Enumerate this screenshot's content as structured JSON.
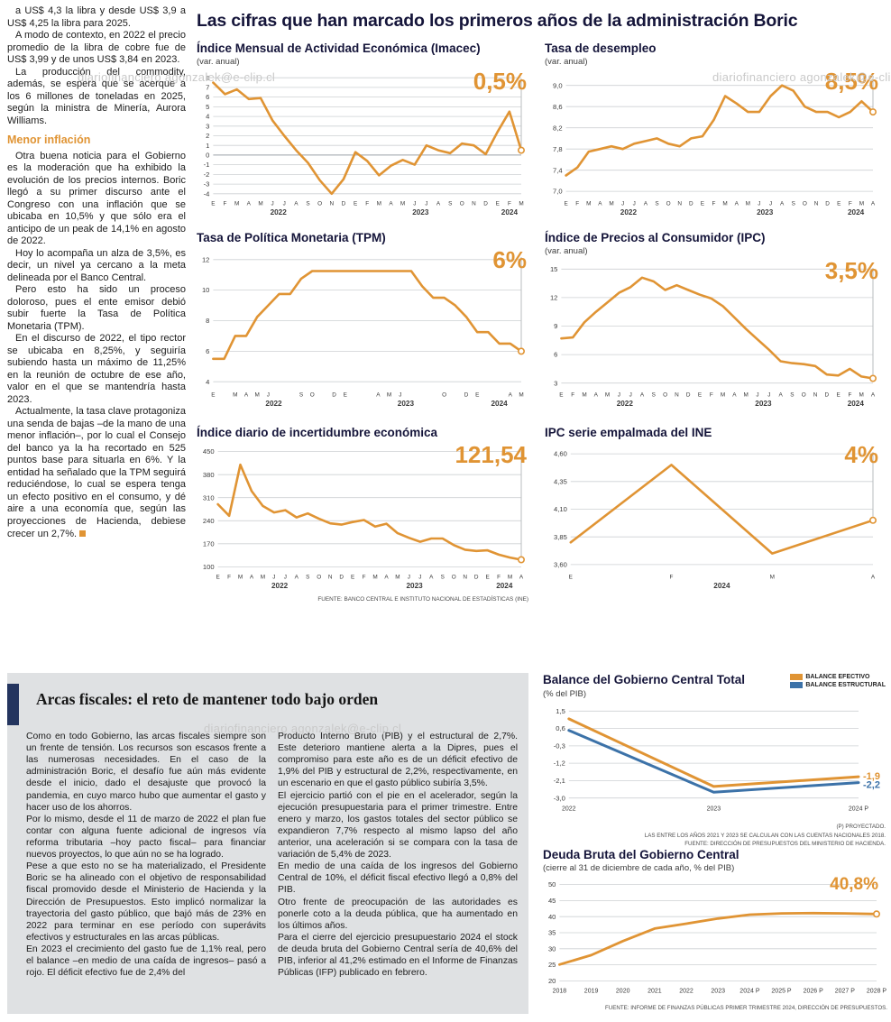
{
  "watermark": "diariofinanciero agonzalek@e-clip.cl",
  "colors": {
    "orange": "#E09434",
    "blue": "#3C72A8",
    "title_dark": "#15153A",
    "gray_bg": "#DFE1E3",
    "accent_bar": "#24355F"
  },
  "left_column": {
    "top_paragraphs": [
      "a US$ 4,3 la libra y desde US$ 3,9 a US$ 4,25 la libra para 2025.",
      "A modo de contexto, en 2022 el precio promedio de la libra de cobre fue de US$ 3,99 y de unos US$ 3,84 en 2023.",
      "La producción del commodity, además, se espera que se acerque a los 6 millones de toneladas en 2025, según la ministra de Minería, Aurora Williams."
    ],
    "section_heading": "Menor inflación",
    "bottom_paragraphs": [
      "Otra buena noticia para el Gobierno es la moderación que ha exhibido la evolución de los precios internos. Boric llegó a su primer discurso ante el Congreso con una inflación que se ubicaba en 10,5% y que sólo era el anticipo de un peak de 14,1% en agosto de 2022.",
      "Hoy lo acompaña un alza de 3,5%, es decir, un nivel ya cercano a la meta delineada por el Banco Central.",
      "Pero esto ha sido un proceso doloroso, pues el ente emisor debió subir fuerte la Tasa de Política Monetaria (TPM).",
      "En el discurso de 2022, el tipo rector se ubicaba en 8,25%, y seguiría subiendo hasta un máximo de 11,25% en la reunión de octubre de ese año, valor en el que se mantendría hasta 2023.",
      "Actualmente, la tasa clave protagoniza una senda de bajas –de la mano de una menor inflación–, por lo cual el Consejo del banco ya la ha recortado en 525 puntos base para situarla en 6%. Y la entidad ha señalado que la TPM seguirá reduciéndose, lo cual se espera tenga un efecto positivo en el consumo, y dé aire a una economía que, según las proyecciones de Hacienda, debiese crecer un 2,7%."
    ]
  },
  "main_title": "Las cifras que han marcado los primeros años de la administración Boric",
  "charts_source": "FUENTE: BANCO CENTRAL E INSTITUTO NACIONAL DE ESTADÍSTICAS (INE)",
  "chart_data": [
    {
      "id": "imacec",
      "type": "line",
      "title": "Índice Mensual de Actividad Económica (Imacec)",
      "subtitle": "(var. anual)",
      "end_label": "0,5%",
      "ylim": [
        -4.3,
        8.3
      ],
      "yticks": [
        8,
        7,
        6,
        5,
        4,
        3,
        2,
        1,
        0,
        -1,
        -2,
        -3,
        -4
      ],
      "ytick_labels": [
        "8",
        "7",
        "6",
        "5",
        "4",
        "3",
        "2",
        "1",
        "0",
        "-1",
        "-2",
        "-3",
        "-4"
      ],
      "x_labels": [
        "E",
        "F",
        "M",
        "A",
        "M",
        "J",
        "J",
        "A",
        "S",
        "O",
        "N",
        "D",
        "E",
        "F",
        "M",
        "A",
        "M",
        "J",
        "J",
        "A",
        "S",
        "O",
        "N",
        "D",
        "E",
        "F",
        "M"
      ],
      "year_groups": [
        {
          "label": "2022",
          "from": 0,
          "to": 11
        },
        {
          "label": "2023",
          "from": 12,
          "to": 23
        },
        {
          "label": "2024",
          "from": 24,
          "to": 26
        }
      ],
      "end_guide": true,
      "series": [
        {
          "name": "Imacec",
          "color": "orange",
          "width": 2.6,
          "end_marker": true,
          "values": [
            7.5,
            6.3,
            6.8,
            5.8,
            5.9,
            3.6,
            2.0,
            0.5,
            -0.8,
            -2.6,
            -4.0,
            -2.5,
            0.3,
            -0.6,
            -2.1,
            -1.1,
            -0.5,
            -1.0,
            1.0,
            0.5,
            0.2,
            1.2,
            1.0,
            0.1,
            2.4,
            4.5,
            0.5
          ]
        }
      ]
    },
    {
      "id": "desempleo",
      "type": "line",
      "title": "Tasa de desempleo",
      "subtitle": "(var. anual)",
      "end_label": "8,5%",
      "ylim": [
        6.9,
        9.2
      ],
      "yticks": [
        9.0,
        8.6,
        8.2,
        7.8,
        7.4,
        7.0
      ],
      "ytick_labels": [
        "9,0",
        "8,6",
        "8,2",
        "7,8",
        "7,4",
        "7,0"
      ],
      "x_labels": [
        "E",
        "F",
        "M",
        "A",
        "M",
        "J",
        "J",
        "A",
        "S",
        "O",
        "N",
        "D",
        "E",
        "F",
        "M",
        "A",
        "M",
        "J",
        "J",
        "A",
        "S",
        "O",
        "N",
        "D",
        "E",
        "F",
        "M",
        "A"
      ],
      "year_groups": [
        {
          "label": "2022",
          "from": 0,
          "to": 11
        },
        {
          "label": "2023",
          "from": 12,
          "to": 23
        },
        {
          "label": "2024",
          "from": 24,
          "to": 27
        }
      ],
      "end_guide": true,
      "series": [
        {
          "name": "Tasa de desempleo",
          "color": "orange",
          "width": 2.6,
          "end_marker": true,
          "values": [
            7.3,
            7.45,
            7.75,
            7.8,
            7.85,
            7.8,
            7.9,
            7.95,
            8.0,
            7.9,
            7.85,
            8.0,
            8.04,
            8.35,
            8.8,
            8.66,
            8.5,
            8.5,
            8.8,
            9.0,
            8.9,
            8.6,
            8.5,
            8.5,
            8.4,
            8.5,
            8.7,
            8.5
          ]
        }
      ]
    },
    {
      "id": "tpm",
      "type": "line",
      "title": "Tasa de Política Monetaria (TPM)",
      "subtitle": "",
      "end_label": "6%",
      "ylim": [
        3.6,
        12.4
      ],
      "yticks": [
        12,
        10,
        8,
        6,
        4
      ],
      "ytick_labels": [
        "12",
        "10",
        "8",
        "6",
        "4"
      ],
      "x_labels": [
        "E",
        "",
        "M",
        "A",
        "M",
        "J",
        "",
        "",
        "S",
        "O",
        "",
        "D",
        "E",
        "",
        "",
        "A",
        "M",
        "J",
        "",
        "",
        "",
        "O",
        "",
        "D",
        "E",
        "",
        "",
        "A",
        "M"
      ],
      "year_groups": [
        {
          "label": "2022",
          "from": 0,
          "to": 11
        },
        {
          "label": "2023",
          "from": 12,
          "to": 23
        },
        {
          "label": "2024",
          "from": 24,
          "to": 28
        }
      ],
      "end_guide": true,
      "series": [
        {
          "name": "TPM",
          "color": "orange",
          "width": 2.6,
          "end_marker": true,
          "values": [
            5.5,
            5.5,
            7.0,
            7.0,
            8.25,
            9.0,
            9.75,
            9.75,
            10.75,
            11.25,
            11.25,
            11.25,
            11.25,
            11.25,
            11.25,
            11.25,
            11.25,
            11.25,
            11.25,
            10.25,
            9.5,
            9.5,
            9.0,
            8.25,
            7.25,
            7.25,
            6.5,
            6.5,
            6.0
          ]
        }
      ]
    },
    {
      "id": "ipc",
      "type": "line",
      "title": "Índice de Precios al Consumidor (IPC)",
      "subtitle": "(var. anual)",
      "end_label": "3,5%",
      "ylim": [
        2.5,
        15.5
      ],
      "yticks": [
        15,
        12,
        9,
        6,
        3
      ],
      "ytick_labels": [
        "15",
        "12",
        "9",
        "6",
        "3"
      ],
      "x_labels": [
        "E",
        "F",
        "M",
        "A",
        "M",
        "J",
        "J",
        "A",
        "S",
        "O",
        "N",
        "D",
        "E",
        "F",
        "M",
        "A",
        "M",
        "J",
        "J",
        "A",
        "S",
        "O",
        "N",
        "D",
        "E",
        "F",
        "M",
        "A"
      ],
      "year_groups": [
        {
          "label": "2022",
          "from": 0,
          "to": 11
        },
        {
          "label": "2023",
          "from": 12,
          "to": 23
        },
        {
          "label": "2024",
          "from": 24,
          "to": 27
        }
      ],
      "end_guide": true,
      "series": [
        {
          "name": "IPC",
          "color": "orange",
          "width": 2.6,
          "end_marker": true,
          "values": [
            7.7,
            7.8,
            9.4,
            10.5,
            11.5,
            12.5,
            13.1,
            14.1,
            13.7,
            12.8,
            13.3,
            12.8,
            12.3,
            11.9,
            11.1,
            9.9,
            8.7,
            7.6,
            6.5,
            5.3,
            5.1,
            5.0,
            4.8,
            3.9,
            3.8,
            4.5,
            3.7,
            3.5
          ]
        }
      ]
    },
    {
      "id": "incertidumbre",
      "type": "line",
      "title": "Índice diario de incertidumbre económica",
      "subtitle": "",
      "end_label": "121,54",
      "ylim": [
        90,
        460
      ],
      "yticks": [
        450,
        380,
        310,
        240,
        170,
        100
      ],
      "ytick_labels": [
        "450",
        "380",
        "310",
        "240",
        "170",
        "100"
      ],
      "x_labels": [
        "E",
        "F",
        "M",
        "A",
        "M",
        "J",
        "J",
        "A",
        "S",
        "O",
        "N",
        "D",
        "E",
        "F",
        "M",
        "A",
        "M",
        "J",
        "J",
        "A",
        "S",
        "O",
        "N",
        "D",
        "E",
        "F",
        "M",
        "A"
      ],
      "year_groups": [
        {
          "label": "2022",
          "from": 0,
          "to": 11
        },
        {
          "label": "2023",
          "from": 12,
          "to": 23
        },
        {
          "label": "2024",
          "from": 24,
          "to": 27
        }
      ],
      "end_guide": true,
      "series": [
        {
          "name": "Incertidumbre económica",
          "color": "orange",
          "width": 2.6,
          "end_marker": true,
          "values": [
            290,
            255,
            410,
            330,
            285,
            265,
            272,
            250,
            262,
            246,
            232,
            228,
            236,
            242,
            222,
            231,
            202,
            188,
            176,
            186,
            186,
            166,
            152,
            148,
            150,
            137,
            128,
            121.54
          ]
        }
      ]
    },
    {
      "id": "ipc_empalmada",
      "type": "line",
      "title": "IPC serie empalmada del INE",
      "subtitle": "",
      "end_label": "4%",
      "ylim": [
        3.55,
        4.65
      ],
      "yticks": [
        4.6,
        4.35,
        4.1,
        3.85,
        3.6
      ],
      "ytick_labels": [
        "4,60",
        "4,35",
        "4,10",
        "3,85",
        "3,60"
      ],
      "x_labels": [
        "E",
        "F",
        "M",
        "A"
      ],
      "year_groups": [
        {
          "label": "2024",
          "from": 0,
          "to": 3
        }
      ],
      "end_guide": true,
      "series": [
        {
          "name": "IPC serie empalmada",
          "color": "orange",
          "width": 2.6,
          "end_marker": true,
          "values": [
            3.8,
            4.5,
            3.7,
            4.0
          ]
        }
      ]
    },
    {
      "id": "balance",
      "type": "line",
      "title": "Balance del Gobierno Central Total",
      "subtitle": "(% del PIB)",
      "end_label": "",
      "ylim": [
        -3.2,
        1.7
      ],
      "yticks": [
        1.5,
        0.6,
        -0.3,
        -1.2,
        -2.1,
        -3.0
      ],
      "ytick_labels": [
        "1,5",
        "0,6",
        "-0,3",
        "-1,2",
        "-2,1",
        "-3,0"
      ],
      "x_labels": [
        "2022",
        "2023",
        "2024 P"
      ],
      "end_guide": false,
      "series": [
        {
          "name": "BALANCE EFECTIVO",
          "color": "orange",
          "width": 3,
          "end_marker": false,
          "end_label": "-1,9",
          "values": [
            1.1,
            -2.4,
            -1.9
          ]
        },
        {
          "name": "BALANCE ESTRUCTURAL",
          "color": "blue",
          "width": 3,
          "end_marker": false,
          "end_label": "-2,2",
          "values": [
            0.5,
            -2.7,
            -2.2
          ]
        }
      ],
      "footnotes": [
        "(P) PROYECTADO.",
        "LAS ENTRE LOS AÑOS 2021 Y 2023 SE CALCULAN CON LAS CUENTAS NACIONALES 2018.",
        "FUENTE: DIRECCIÓN DE PRESUPUESTOS DEL MINISTERIO DE HACIENDA."
      ]
    },
    {
      "id": "deuda",
      "type": "line",
      "title": "Deuda Bruta del Gobierno Central",
      "subtitle": "(cierre al 31 de diciembre de cada año, % del PIB)",
      "end_label": "40,8%",
      "ylim": [
        19,
        51
      ],
      "yticks": [
        50,
        45,
        40,
        35,
        30,
        25,
        20
      ],
      "ytick_labels": [
        "50",
        "45",
        "40",
        "35",
        "30",
        "25",
        "20"
      ],
      "x_labels": [
        "2018",
        "2019",
        "2020",
        "2021",
        "2022",
        "2023",
        "2024 P",
        "2025 P",
        "2026 P",
        "2027 P",
        "2028 P"
      ],
      "end_guide": false,
      "series": [
        {
          "name": "Deuda bruta",
          "color": "orange",
          "width": 2.8,
          "end_marker": true,
          "values": [
            25.1,
            28.0,
            32.4,
            36.3,
            37.8,
            39.4,
            40.6,
            41.0,
            41.1,
            41.0,
            40.8
          ]
        }
      ],
      "footnote": "FUENTE: INFORME DE FINANZAS PÚBLICAS PRIMER TRIMESTRE 2024, DIRECCIÓN DE PRESUPUESTOS."
    }
  ],
  "arcas": {
    "title": "Arcas fiscales: el reto de mantener todo bajo orden",
    "col1": [
      "Como en todo Gobierno, las arcas fiscales siempre son un frente de tensión. Los recursos son escasos frente a las numerosas necesidades. En el caso de la administración Boric, el desafío fue aún más evidente desde el inicio, dado el desajuste que provocó la pandemia, en cuyo marco hubo que aumentar el gasto y hacer uso de los ahorros.",
      "Por lo mismo, desde el 11 de marzo de 2022 el plan fue contar con alguna fuente adicional de ingresos vía reforma tributaria –hoy pacto fiscal– para financiar nuevos proyectos, lo que aún no se ha logrado.",
      "Pese a que esto no se ha materializado, el Presidente Boric se ha alineado con el objetivo de responsabilidad fiscal promovido desde el Ministerio de Hacienda y la Dirección de Presupuestos. Esto implicó normalizar la trayectoria del gasto público, que bajó más de 23% en 2022 para terminar en ese período con superávits efectivos y estructurales en las arcas públicas.",
      "En 2023 el crecimiento del gasto fue de 1,1% real, pero el balance –en medio de una caída de ingresos– pasó a rojo. El déficit efectivo fue de 2,4% del"
    ],
    "col2": [
      "Producto Interno Bruto (PIB) y el estructural de 2,7%. Este deterioro mantiene alerta a la Dipres, pues el compromiso para este año es de un déficit efectivo de 1,9% del PIB y estructural de 2,2%, respectivamente, en un escenario en que el gasto público subiría 3,5%.",
      "El ejercicio partió con el pie en el acelerador, según la ejecución presupuestaria para el primer trimestre. Entre enero y marzo, los gastos totales del sector público se expandieron 7,7% respecto al mismo lapso del año anterior, una aceleración si se compara con la tasa de variación de 5,4% de 2023.",
      "En medio de una caída de los ingresos del Gobierno Central de 10%, el déficit fiscal efectivo llegó a 0,8% del PIB.",
      "Otro frente de preocupación de las autoridades es ponerle coto a la deuda pública, que ha aumentado en los últimos años.",
      "Para el cierre del ejercicio presupuestario 2024 el stock de deuda bruta del Gobierno Central sería de 40,6% del PIB, inferior al 41,2% estimado en el Informe de Finanzas Públicas (IFP) publicado en febrero."
    ]
  }
}
